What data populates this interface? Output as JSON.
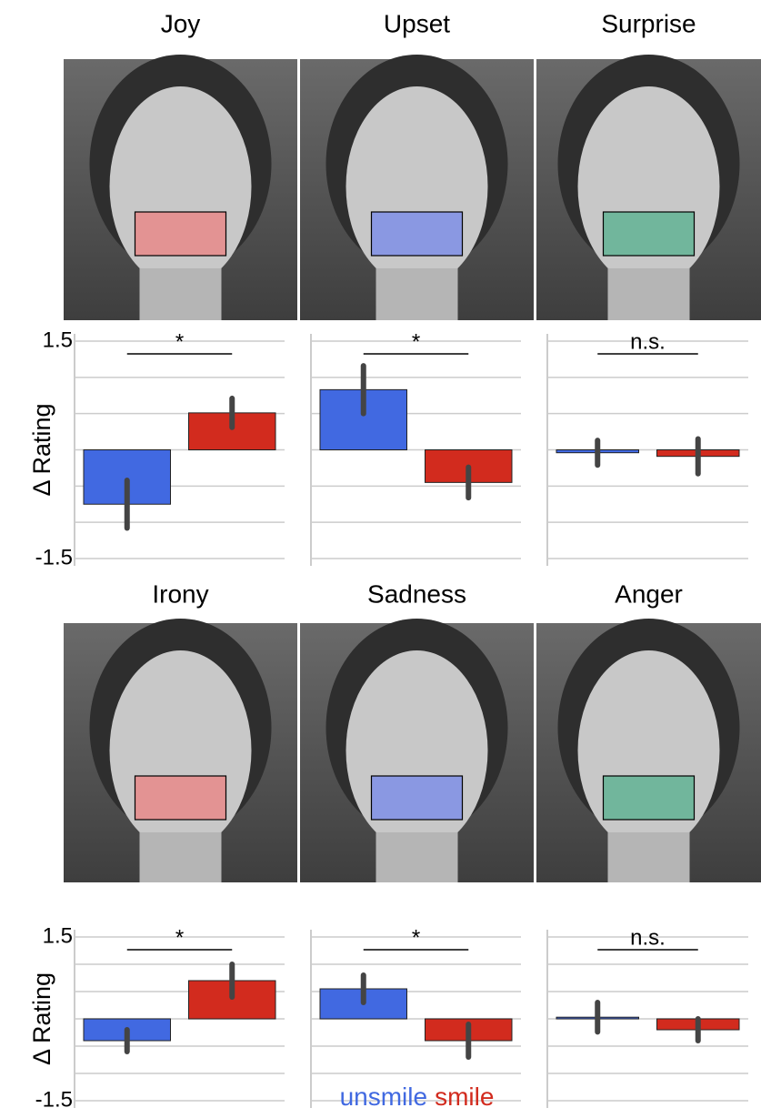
{
  "chart_data": [
    {
      "type": "bar",
      "title": "Joy",
      "significance": "*",
      "ylabel": "Δ Rating",
      "ylim": [
        -1.5,
        1.5
      ],
      "yticks": [
        1.5,
        -1.5
      ],
      "gridlines": [
        -1.5,
        -1,
        -0.5,
        0,
        0.5,
        1,
        1.5
      ],
      "series": [
        {
          "name": "unsmile",
          "color": "#4169e1",
          "values": [
            -0.75
          ],
          "errors": [
            0.33
          ]
        },
        {
          "name": "smile",
          "color": "#d22b1e",
          "values": [
            0.51
          ],
          "errors": [
            0.2
          ]
        }
      ]
    },
    {
      "type": "bar",
      "title": "Upset",
      "significance": "*",
      "ylim": [
        -1.5,
        1.5
      ],
      "gridlines": [
        -1.5,
        -1,
        -0.5,
        0,
        0.5,
        1,
        1.5
      ],
      "series": [
        {
          "name": "unsmile",
          "color": "#4169e1",
          "values": [
            0.83
          ],
          "errors": [
            0.33
          ]
        },
        {
          "name": "smile",
          "color": "#d22b1e",
          "values": [
            -0.45
          ],
          "errors": [
            0.21
          ]
        }
      ]
    },
    {
      "type": "bar",
      "title": "Surprise",
      "significance": "n.s.",
      "ylim": [
        -1.5,
        1.5
      ],
      "gridlines": [
        -1.5,
        -1,
        -0.5,
        0,
        0.5,
        1,
        1.5
      ],
      "series": [
        {
          "name": "unsmile",
          "color": "#4169e1",
          "values": [
            -0.04
          ],
          "errors": [
            0.17
          ]
        },
        {
          "name": "smile",
          "color": "#d22b1e",
          "values": [
            -0.09
          ],
          "errors": [
            0.24
          ]
        }
      ]
    },
    {
      "type": "bar",
      "title": "Irony",
      "significance": "*",
      "ylabel": "Δ Rating",
      "ylim": [
        -1.5,
        1.5
      ],
      "yticks": [
        1.5,
        -1.5
      ],
      "gridlines": [
        -1.5,
        -1,
        -0.5,
        0,
        0.5,
        1,
        1.5
      ],
      "series": [
        {
          "name": "unsmile",
          "color": "#4169e1",
          "values": [
            -0.4
          ],
          "errors": [
            0.2
          ]
        },
        {
          "name": "smile",
          "color": "#d22b1e",
          "values": [
            0.7
          ],
          "errors": [
            0.3
          ]
        }
      ]
    },
    {
      "type": "bar",
      "title": "Sadness",
      "significance": "*",
      "ylim": [
        -1.5,
        1.5
      ],
      "gridlines": [
        -1.5,
        -1,
        -0.5,
        0,
        0.5,
        1,
        1.5
      ],
      "legend": true,
      "series": [
        {
          "name": "unsmile",
          "color": "#4169e1",
          "values": [
            0.55
          ],
          "errors": [
            0.25
          ]
        },
        {
          "name": "smile",
          "color": "#d22b1e",
          "values": [
            -0.4
          ],
          "errors": [
            0.3
          ]
        }
      ]
    },
    {
      "type": "bar",
      "title": "Anger",
      "significance": "n.s.",
      "ylim": [
        -1.5,
        1.5
      ],
      "gridlines": [
        -1.5,
        -1,
        -0.5,
        0,
        0.5,
        1,
        1.5
      ],
      "series": [
        {
          "name": "unsmile",
          "color": "#4169e1",
          "values": [
            0.03
          ],
          "errors": [
            0.27
          ]
        },
        {
          "name": "smile",
          "color": "#d22b1e",
          "values": [
            -0.2
          ],
          "errors": [
            0.2
          ]
        }
      ]
    }
  ]
}
